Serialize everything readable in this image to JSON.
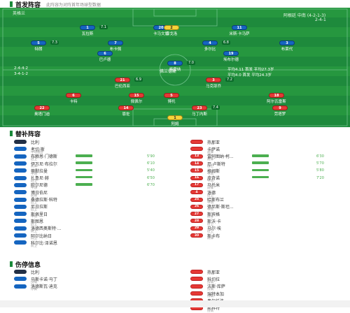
{
  "lineup": {
    "title": "首发阵容",
    "subtitle": "此阵容为对阵首年场球型数据",
    "home_team": "英格兰",
    "away_team": "阿根廷 中南 (4-2-1-3)",
    "away_sub": "2-4-1",
    "home_formation": "2-4-4-2",
    "home_formation_sub": "3-4-1-2",
    "away_formation": "平均4.11 首发 平均27.3岁",
    "away_formation_sub": "平均4.0 首发 平均24.3岁",
    "mid_label": "佛兰德斯",
    "home_players": [
      {
        "num": "1",
        "name": "瓦拉斯",
        "rate": "7.1"
      },
      {
        "num": "20",
        "name": "卡马文加",
        "rate": ""
      },
      {
        "num": "11",
        "name": "米斯·卡马萨",
        "rate": ""
      },
      {
        "num": "5",
        "name": "特朗",
        "rate": "7.3"
      },
      {
        "num": "7",
        "name": "布卡佩",
        "rate": ""
      },
      {
        "num": "4",
        "name": "多尔比",
        "rate": "6.8"
      },
      {
        "num": "3",
        "name": "布莱代",
        "rate": ""
      },
      {
        "num": "6",
        "name": "巴卢德",
        "rate": ""
      },
      {
        "num": "8",
        "name": "格雷纳",
        "rate": "7.0"
      },
      {
        "num": "19",
        "name": "埃布尔德",
        "rate": ""
      },
      {
        "num": "2",
        "name": "恩戈洛",
        "rate": ""
      }
    ],
    "away_players": [
      {
        "num": "21",
        "name": "巴伦西亚",
        "rate": "6.9"
      },
      {
        "num": "6",
        "name": "卡特",
        "rate": ""
      },
      {
        "num": "15",
        "name": "佩佩尔",
        "rate": ""
      },
      {
        "num": "3",
        "name": "马克耶乔",
        "rate": "7.2"
      },
      {
        "num": "5",
        "name": "博托",
        "rate": ""
      },
      {
        "num": "18",
        "name": "阿尔瓦雷斯",
        "rate": ""
      },
      {
        "num": "22",
        "name": "奥塔门迪",
        "rate": ""
      },
      {
        "num": "14",
        "name": "恩佐",
        "rate": ""
      },
      {
        "num": "23",
        "name": "马丁内斯",
        "rate": "7.4"
      },
      {
        "num": "9",
        "name": "劳塔罗",
        "rate": ""
      },
      {
        "num": "1",
        "name": "阿姆",
        "rate": ""
      }
    ]
  },
  "subs": {
    "title": "替补阵容",
    "left_team": "比利",
    "right_team": "热那亚",
    "left": [
      {
        "num": "",
        "name": "考切·斯",
        "sub": "中场替补",
        "pct": ""
      },
      {
        "num": "",
        "name": "布赖恩·门德斯",
        "sub": "后卫",
        "pct": "5'90"
      },
      {
        "num": "",
        "name": "伊万尼·布拉尔",
        "sub": "前锋",
        "pct": "6'10"
      },
      {
        "num": "",
        "name": "蒂默拉曼",
        "sub": "中场",
        "pct": "5'40"
      },
      {
        "num": "",
        "name": "扎鲁尼·赫",
        "sub": "后卫",
        "pct": "6'50"
      },
      {
        "num": "",
        "name": "欧尔尼德",
        "sub": "中场",
        "pct": "6'70"
      },
      {
        "num": "",
        "name": "博日伯尼",
        "sub": "前锋",
        "pct": ""
      },
      {
        "num": "",
        "name": "桑德拉斯·科特",
        "sub": "后卫",
        "pct": ""
      },
      {
        "num": "",
        "name": "尼日拉斯",
        "sub": "后卫",
        "pct": ""
      },
      {
        "num": "",
        "name": "斯佩里日",
        "sub": "中场",
        "pct": ""
      },
      {
        "num": "",
        "name": "斯图恩",
        "sub": "后卫",
        "pct": ""
      },
      {
        "num": "",
        "name": "洛德西奥斯特·...",
        "sub": "前卫",
        "pct": ""
      },
      {
        "num": "",
        "name": "阿尔比纳日",
        "sub": "前卫",
        "pct": ""
      },
      {
        "num": "",
        "name": "科尔比·泽诺恩",
        "sub": "前卫",
        "pct": ""
      }
    ],
    "right": [
      {
        "num": "",
        "name": "卡萨诺",
        "sub": "前锋",
        "pct": ""
      },
      {
        "num": "13",
        "name": "雷阿图纳·柯...",
        "sub": "前锋",
        "pct": "6'30"
      },
      {
        "num": "14",
        "name": "厄·卢斯特",
        "sub": "后卫",
        "pct": "5'70"
      },
      {
        "num": "15",
        "name": "格姆斯",
        "sub": "中场",
        "pct": "5'80"
      },
      {
        "num": "16",
        "name": "皮奇诺",
        "sub": "中场",
        "pct": "7'20"
      },
      {
        "num": "17",
        "name": "马托米",
        "sub": "前锋",
        "pct": ""
      },
      {
        "num": "4",
        "name": "洛德",
        "sub": "后卫",
        "pct": ""
      },
      {
        "num": "25",
        "name": "哈斯布兰",
        "sub": "中场",
        "pct": ""
      },
      {
        "num": "26",
        "name": "德尼斯·斯坦...",
        "sub": "中场",
        "pct": ""
      },
      {
        "num": "27",
        "name": "斯宾格",
        "sub": "前锋",
        "pct": ""
      },
      {
        "num": "28",
        "name": "斯沃·卡",
        "sub": "后卫",
        "pct": ""
      },
      {
        "num": "29",
        "name": "马尔·埃",
        "sub": "后卫",
        "pct": ""
      },
      {
        "num": "30",
        "name": "斯卡布",
        "sub": "前锋",
        "pct": ""
      }
    ]
  },
  "injuries": {
    "title": "伤停信息",
    "left_team": "比利",
    "right_team": "热那亚",
    "left": [
      {
        "name": "马斯卡诺·马丁",
        "sub": "伤病"
      },
      {
        "name": "洛德斯瓦·迪克",
        "sub": "停赛"
      }
    ],
    "right": [
      {
        "name": "科切拉",
        "sub": "伤病"
      },
      {
        "name": "法斯·库萨",
        "sub": "伤病"
      },
      {
        "name": "瑞特本加",
        "sub": "伤病"
      },
      {
        "name": "奥尔托洛",
        "sub": "伤病"
      },
      {
        "name": "斯科特",
        "sub": "伤病"
      }
    ]
  }
}
